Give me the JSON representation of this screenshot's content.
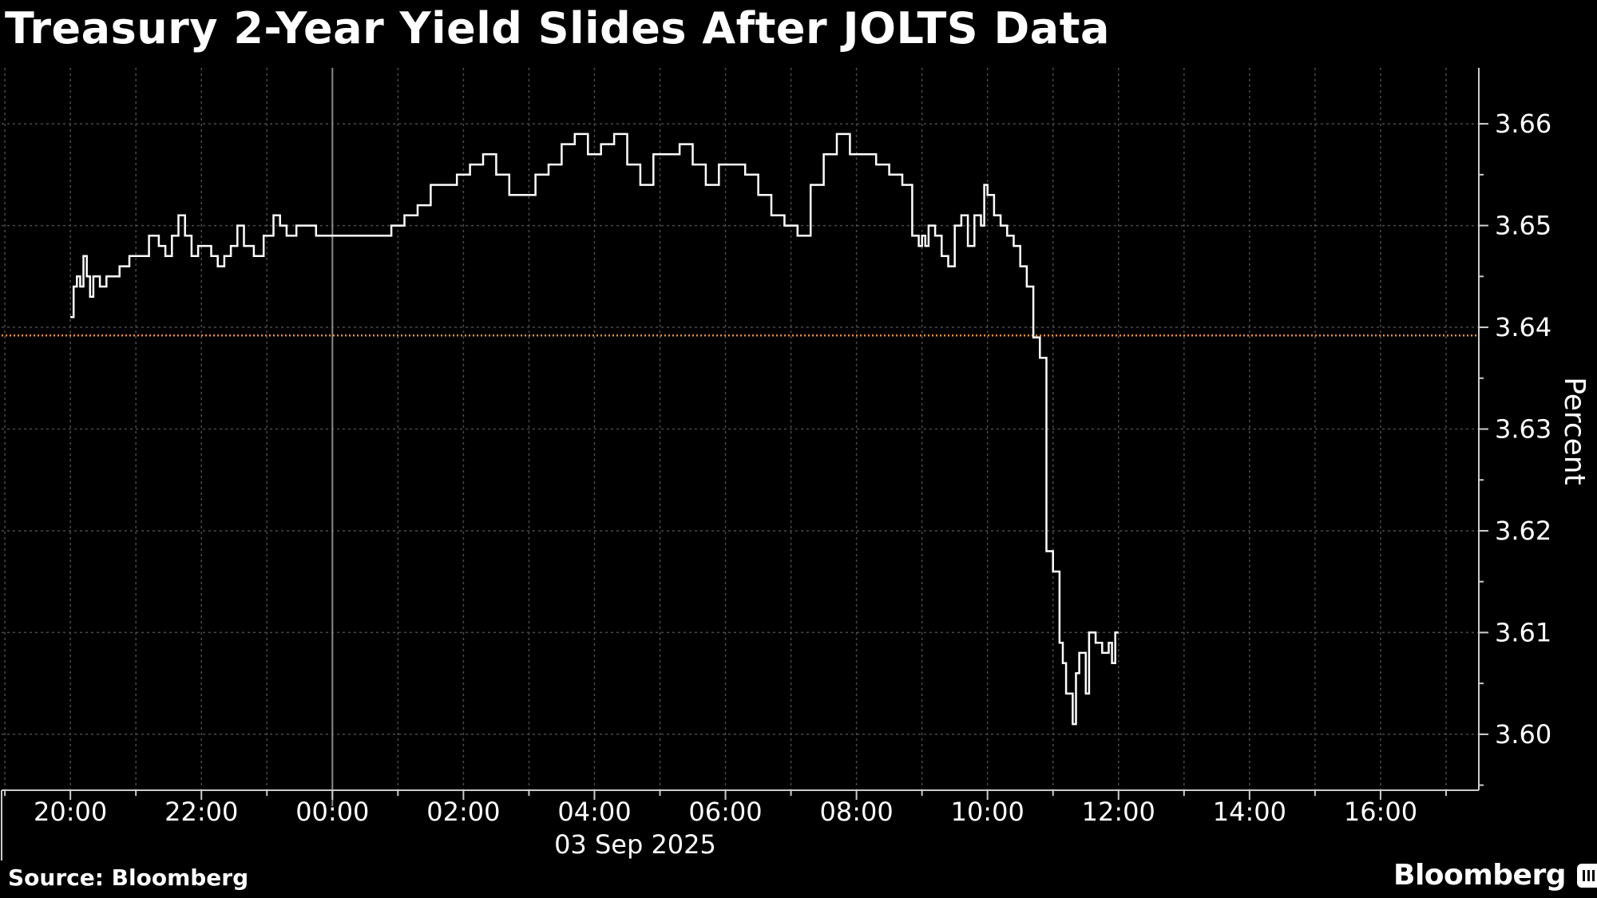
{
  "title": "Treasury 2-Year Yield Slides After JOLTS Data",
  "source": "Source: Bloomberg",
  "brand": "Bloomberg",
  "colors": {
    "background": "#000000",
    "line": "#ffffff",
    "grid": "#555555",
    "reference": "#e8912d"
  },
  "chart_data": {
    "type": "line",
    "title": "Treasury 2-Year Yield Slides After JOLTS Data",
    "ylabel": "Percent",
    "xlabel": "03 Sep 2025",
    "x_ticks": [
      "20:00",
      "22:00",
      "00:00",
      "02:00",
      "04:00",
      "06:00",
      "08:00",
      "10:00",
      "12:00",
      "14:00",
      "16:00"
    ],
    "y_ticks": [
      "3.60",
      "3.61",
      "3.62",
      "3.63",
      "3.64",
      "3.65",
      "3.66"
    ],
    "xlim_hours": [
      18.95,
      41.5
    ],
    "ylim": [
      3.5945,
      3.6655
    ],
    "reference_line": {
      "value": 3.6392,
      "style": "dotted"
    },
    "grid": true,
    "series": [
      {
        "x_hours": [
          20.0,
          20.05,
          20.1,
          20.15,
          20.2,
          20.25,
          20.3,
          20.35,
          20.45,
          20.55,
          20.65,
          20.75,
          20.9,
          21.05,
          21.2,
          21.35,
          21.45,
          21.55,
          21.65,
          21.75,
          21.85,
          21.95,
          22.05,
          22.15,
          22.25,
          22.35,
          22.45,
          22.55,
          22.65,
          22.8,
          22.95,
          23.1,
          23.2,
          23.3,
          23.45,
          23.6,
          23.75,
          23.9,
          24.1,
          24.3,
          24.5,
          24.7,
          24.9,
          25.1,
          25.3,
          25.5,
          25.7,
          25.9,
          26.1,
          26.3,
          26.5,
          26.7,
          26.9,
          27.1,
          27.3,
          27.5,
          27.7,
          27.9,
          28.1,
          28.3,
          28.5,
          28.7,
          28.9,
          29.1,
          29.3,
          29.5,
          29.7,
          29.9,
          30.1,
          30.3,
          30.5,
          30.7,
          30.9,
          31.1,
          31.3,
          31.5,
          31.7,
          31.9,
          32.1,
          32.3,
          32.5,
          32.7,
          32.85,
          32.95,
          33.0,
          33.05,
          33.1,
          33.2,
          33.3,
          33.4,
          33.5,
          33.6,
          33.7,
          33.8,
          33.9,
          33.95,
          34.0,
          34.1,
          34.2,
          34.3,
          34.4,
          34.5,
          34.6,
          34.7,
          34.8,
          34.9
        ],
        "values": [
          3.641,
          3.644,
          3.645,
          3.644,
          3.647,
          3.645,
          3.643,
          3.645,
          3.644,
          3.645,
          3.645,
          3.646,
          3.647,
          3.647,
          3.649,
          3.648,
          3.647,
          3.649,
          3.651,
          3.649,
          3.647,
          3.648,
          3.648,
          3.647,
          3.646,
          3.647,
          3.648,
          3.65,
          3.648,
          3.647,
          3.649,
          3.651,
          3.65,
          3.649,
          3.65,
          3.65,
          3.649,
          3.649,
          3.649,
          3.649,
          3.649,
          3.649,
          3.65,
          3.651,
          3.652,
          3.654,
          3.654,
          3.655,
          3.656,
          3.657,
          3.655,
          3.653,
          3.653,
          3.655,
          3.656,
          3.658,
          3.659,
          3.657,
          3.658,
          3.659,
          3.656,
          3.654,
          3.657,
          3.657,
          3.658,
          3.656,
          3.654,
          3.656,
          3.656,
          3.655,
          3.653,
          3.651,
          3.65,
          3.649,
          3.654,
          3.657,
          3.659,
          3.657,
          3.657,
          3.656,
          3.655,
          3.654,
          3.649,
          3.648,
          3.649,
          3.648,
          3.65,
          3.649,
          3.647,
          3.646,
          3.65,
          3.651,
          3.648,
          3.651,
          3.65,
          3.654,
          3.653,
          3.651,
          3.65,
          3.649,
          3.648,
          3.646,
          3.644,
          3.639,
          3.637,
          3.618
        ]
      }
    ]
  }
}
